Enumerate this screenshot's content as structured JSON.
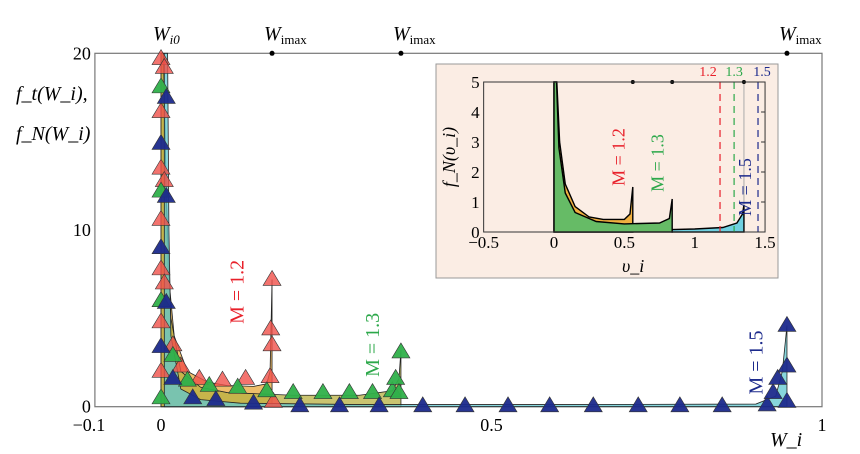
{
  "chart_data": [
    {
      "type": "line",
      "ylabel_lines": [
        "f_t(W_i),",
        "f_N(W_i)"
      ],
      "xlabel": "W_i",
      "xlim": [
        -0.1,
        1
      ],
      "ylim": [
        0,
        20
      ],
      "xticks": [
        "-0.1",
        "0",
        "0.5",
        "1"
      ],
      "xtick_values": [
        -0.1,
        0,
        0.5,
        1
      ],
      "yticks": [
        "0",
        "10",
        "20"
      ],
      "ytick_values": [
        0,
        10,
        20
      ],
      "top_markers": [
        {
          "label": "W",
          "sub": "i0",
          "x": 0
        },
        {
          "label": "W",
          "sub": "imax",
          "x": 0.168
        },
        {
          "label": "W",
          "sub": "imax",
          "x": 0.363
        },
        {
          "label": "W",
          "sub": "imax",
          "x": 0.947
        }
      ],
      "annotations": [
        {
          "text": "M = 1.2",
          "color": "#e8202a",
          "x": 0.125,
          "y": 6.5
        },
        {
          "text": "M = 1.3",
          "color": "#2ca84a",
          "x": 0.33,
          "y": 3.5
        },
        {
          "text": "M = 1.5",
          "color": "#1c2a8c",
          "x": 0.91,
          "y": 2.5
        }
      ],
      "series": [
        {
          "name": "M = 1.2",
          "color": "#f0504a",
          "fill": "#e8a83a",
          "curve": [
            [
              0,
              20
            ],
            [
              0.003,
              20
            ],
            [
              0.006,
              15
            ],
            [
              0.01,
              8
            ],
            [
              0.02,
              4
            ],
            [
              0.04,
              2
            ],
            [
              0.07,
              1.4
            ],
            [
              0.1,
              1.2
            ],
            [
              0.14,
              1.15
            ],
            [
              0.16,
              1.3
            ],
            [
              0.165,
              2
            ],
            [
              0.168,
              7.2
            ],
            [
              0.168,
              0
            ]
          ],
          "points": [
            [
              0,
              19.7
            ],
            [
              0.005,
              19.2
            ],
            [
              0,
              16.7
            ],
            [
              0,
              13.5
            ],
            [
              0.005,
              12.8
            ],
            [
              0,
              10.6
            ],
            [
              0,
              7.8
            ],
            [
              0.005,
              7.0
            ],
            [
              0,
              4.8
            ],
            [
              0,
              2.0
            ],
            [
              0.018,
              3.5
            ],
            [
              0.03,
              2.3
            ],
            [
              0.058,
              1.6
            ],
            [
              0.093,
              1.5
            ],
            [
              0.128,
              1.6
            ],
            [
              0.168,
              7.2
            ],
            [
              0.166,
              4.4
            ],
            [
              0.168,
              3.5
            ],
            [
              0.165,
              1.7
            ],
            [
              0.17,
              0.3
            ]
          ]
        },
        {
          "name": "M = 1.3",
          "color": "#2fb04a",
          "fill": "#b8b040",
          "curve": [
            [
              0,
              20
            ],
            [
              0.004,
              20
            ],
            [
              0.008,
              12
            ],
            [
              0.015,
              5
            ],
            [
              0.03,
              2
            ],
            [
              0.06,
              1.1
            ],
            [
              0.1,
              0.8
            ],
            [
              0.2,
              0.65
            ],
            [
              0.3,
              0.65
            ],
            [
              0.35,
              0.9
            ],
            [
              0.36,
              1.6
            ],
            [
              0.363,
              3.2
            ],
            [
              0.363,
              0
            ]
          ],
          "points": [
            [
              0,
              18.1
            ],
            [
              0,
              12.2
            ],
            [
              0,
              6.0
            ],
            [
              0,
              0.5
            ],
            [
              0.018,
              2.9
            ],
            [
              0.04,
              1.5
            ],
            [
              0.073,
              1.2
            ],
            [
              0.116,
              1.1
            ],
            [
              0.16,
              0.9
            ],
            [
              0.2,
              0.8
            ],
            [
              0.245,
              0.8
            ],
            [
              0.285,
              0.8
            ],
            [
              0.32,
              0.8
            ],
            [
              0.35,
              0.9
            ],
            [
              0.355,
              1.6
            ],
            [
              0.363,
              3.1
            ],
            [
              0.36,
              0.8
            ]
          ]
        },
        {
          "name": "M = 1.5",
          "color": "#1c2a8c",
          "fill": "#5fc8d0",
          "curve": [
            [
              0.005,
              20
            ],
            [
              0.01,
              20
            ],
            [
              0.012,
              10
            ],
            [
              0.015,
              4
            ],
            [
              0.03,
              1
            ],
            [
              0.06,
              0.4
            ],
            [
              0.12,
              0.2
            ],
            [
              0.3,
              0.12
            ],
            [
              0.6,
              0.12
            ],
            [
              0.9,
              0.15
            ],
            [
              0.93,
              0.6
            ],
            [
              0.94,
              2
            ],
            [
              0.947,
              4.6
            ],
            [
              0.947,
              0
            ]
          ],
          "points": [
            [
              0,
              14.9
            ],
            [
              0,
              9.0
            ],
            [
              0,
              3.4
            ],
            [
              0.008,
              17.5
            ],
            [
              0.008,
              11.9
            ],
            [
              0.008,
              5.9
            ],
            [
              0.018,
              1.6
            ],
            [
              0.048,
              0.5
            ],
            [
              0.083,
              0.4
            ],
            [
              0.14,
              0.2
            ],
            [
              0.21,
              0.05
            ],
            [
              0.27,
              0.05
            ],
            [
              0.33,
              0.05
            ],
            [
              0.396,
              0.05
            ],
            [
              0.46,
              0.05
            ],
            [
              0.525,
              0.05
            ],
            [
              0.588,
              0.05
            ],
            [
              0.654,
              0.05
            ],
            [
              0.722,
              0.05
            ],
            [
              0.785,
              0.05
            ],
            [
              0.849,
              0.05
            ],
            [
              0.917,
              0.1
            ],
            [
              0.926,
              0.8
            ],
            [
              0.933,
              1.6
            ],
            [
              0.947,
              2.3
            ],
            [
              0.947,
              4.6
            ],
            [
              0.947,
              0.3
            ]
          ]
        }
      ]
    },
    {
      "type": "area",
      "inset": true,
      "ylabel": "f_N(υ_i)",
      "xlabel": "υ_i",
      "xlim": [
        -0.5,
        1.5
      ],
      "ylim": [
        0,
        5
      ],
      "xticks": [
        "-0.5",
        "0",
        "0.5",
        "1",
        "1.5"
      ],
      "xtick_values": [
        -0.5,
        0,
        0.5,
        1,
        1.5
      ],
      "yticks": [
        "0",
        "1",
        "2",
        "3",
        "4",
        "5"
      ],
      "ytick_values": [
        0,
        1,
        2,
        3,
        4,
        5
      ],
      "background": "#fbede4",
      "dashed_lines": [
        {
          "label": "1.2",
          "x": 1.18,
          "color": "#e8202a"
        },
        {
          "label": "1.3",
          "x": 1.28,
          "color": "#2ca84a"
        },
        {
          "label": "1.5",
          "x": 1.45,
          "color": "#1c2a8c"
        }
      ],
      "annotations": [
        {
          "text": "M = 1.2",
          "color": "#e8202a",
          "x": 0.5,
          "y": 2.5
        },
        {
          "text": "M = 1.3",
          "color": "#2ca84a",
          "x": 0.78,
          "y": 2.3
        },
        {
          "text": "M = 1.5",
          "color": "#1c2a8c",
          "x": 1.4,
          "y": 1.5
        }
      ],
      "series": [
        {
          "name": "M = 1.2",
          "fill": "#f0b040",
          "imax": 0.56,
          "curve": [
            [
              0,
              5
            ],
            [
              0.02,
              5
            ],
            [
              0.04,
              3
            ],
            [
              0.08,
              1.6
            ],
            [
              0.15,
              0.85
            ],
            [
              0.25,
              0.5
            ],
            [
              0.35,
              0.42
            ],
            [
              0.5,
              0.42
            ],
            [
              0.54,
              0.6
            ],
            [
              0.56,
              1.5
            ],
            [
              0.56,
              0
            ]
          ]
        },
        {
          "name": "M = 1.3",
          "fill": "#66bb66",
          "imax": 0.84,
          "curve": [
            [
              0,
              5
            ],
            [
              0.018,
              5
            ],
            [
              0.035,
              2.8
            ],
            [
              0.08,
              1.3
            ],
            [
              0.15,
              0.65
            ],
            [
              0.3,
              0.35
            ],
            [
              0.5,
              0.27
            ],
            [
              0.75,
              0.3
            ],
            [
              0.82,
              0.45
            ],
            [
              0.84,
              1.1
            ],
            [
              0.84,
              0
            ]
          ]
        },
        {
          "name": "M = 1.5",
          "fill": "#6fd0e0",
          "imax": 1.35,
          "curve": [
            [
              0.84,
              0.08
            ],
            [
              1.0,
              0.1
            ],
            [
              1.2,
              0.15
            ],
            [
              1.3,
              0.3
            ],
            [
              1.34,
              0.6
            ],
            [
              1.35,
              0.9
            ],
            [
              1.35,
              0
            ]
          ]
        }
      ]
    }
  ]
}
